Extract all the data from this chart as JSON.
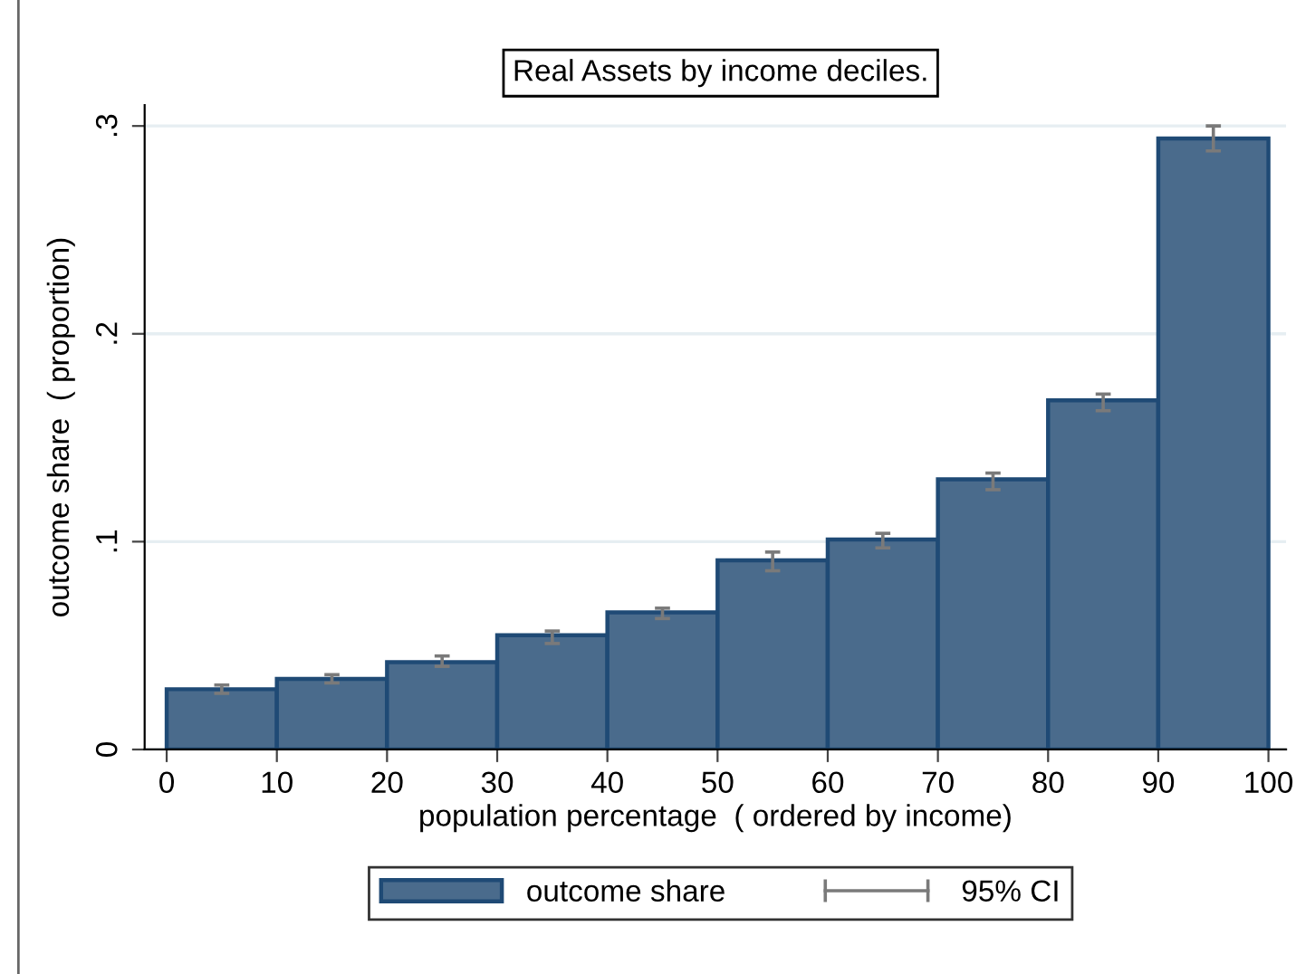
{
  "chart_data": {
    "type": "histogram",
    "title": "Real Assets by income deciles.",
    "xlabel": "population percentage  ( ordered by income)",
    "ylabel": "outcome share  ( proportion)",
    "bins": [
      0,
      10,
      20,
      30,
      40,
      50,
      60,
      70,
      80,
      90,
      100
    ],
    "series": [
      {
        "name": "outcome share",
        "color": "#4a6b8c",
        "values": [
          0.029,
          0.034,
          0.042,
          0.055,
          0.066,
          0.091,
          0.101,
          0.13,
          0.168,
          0.294
        ],
        "errors": [
          [
            0.027,
            0.031
          ],
          [
            0.032,
            0.036
          ],
          [
            0.04,
            0.045
          ],
          [
            0.051,
            0.057
          ],
          [
            0.063,
            0.068
          ],
          [
            0.086,
            0.095
          ],
          [
            0.097,
            0.104
          ],
          [
            0.125,
            0.133
          ],
          [
            0.163,
            0.171
          ],
          [
            0.288,
            0.3
          ]
        ]
      }
    ],
    "annotations": [
      "95% CI"
    ],
    "xlim": [
      -2,
      101.6
    ],
    "xticks": [
      0,
      10,
      20,
      30,
      40,
      50,
      60,
      70,
      80,
      90,
      100
    ],
    "ylim": [
      0,
      0.31
    ],
    "yticks": [
      {
        "value": 0,
        "label": "0"
      },
      {
        "value": 0.1,
        "label": ".1"
      },
      {
        "value": 0.2,
        "label": ".2"
      },
      {
        "value": 0.3,
        "label": ".3"
      }
    ],
    "grid": "y",
    "legend": "bottom"
  }
}
